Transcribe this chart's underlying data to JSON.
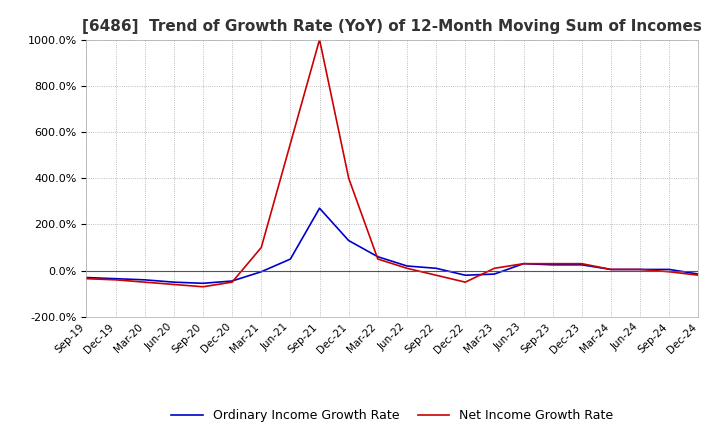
{
  "title": "[6486]  Trend of Growth Rate (YoY) of 12-Month Moving Sum of Incomes",
  "title_fontsize": 11,
  "ylim": [
    -200,
    1000
  ],
  "yticks": [
    -200,
    0,
    200,
    400,
    600,
    800,
    1000
  ],
  "background_color": "#ffffff",
  "grid_color": "#aaaaaa",
  "legend_labels": [
    "Ordinary Income Growth Rate",
    "Net Income Growth Rate"
  ],
  "legend_colors": [
    "#0000cc",
    "#cc0000"
  ],
  "x_labels": [
    "Sep-19",
    "Dec-19",
    "Mar-20",
    "Jun-20",
    "Sep-20",
    "Dec-20",
    "Mar-21",
    "Jun-21",
    "Sep-21",
    "Dec-21",
    "Mar-22",
    "Jun-22",
    "Sep-22",
    "Dec-22",
    "Mar-23",
    "Jun-23",
    "Sep-23",
    "Dec-23",
    "Mar-24",
    "Jun-24",
    "Sep-24",
    "Dec-24"
  ],
  "ordinary_income_gr": [
    -30,
    -35,
    -40,
    -50,
    -55,
    -45,
    -5,
    50,
    270,
    130,
    60,
    20,
    10,
    -20,
    -15,
    30,
    25,
    25,
    5,
    5,
    5,
    -15
  ],
  "net_income_gr": [
    -35,
    -40,
    -50,
    -60,
    -70,
    -50,
    100,
    550,
    1000,
    400,
    50,
    10,
    -20,
    -50,
    10,
    30,
    30,
    30,
    5,
    5,
    -5,
    -20
  ]
}
